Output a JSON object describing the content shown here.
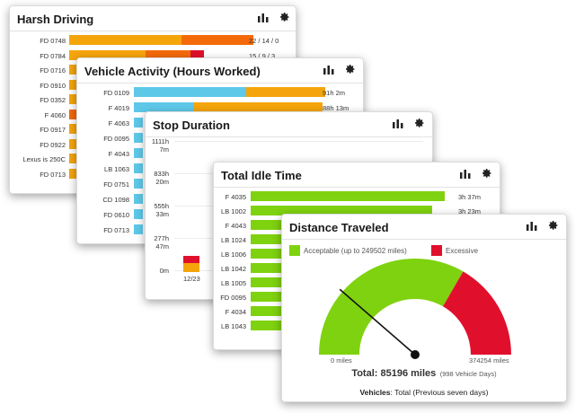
{
  "harsh": {
    "title": "Harsh Driving",
    "rows": [
      {
        "label": "FD 0748",
        "value": "22 / 14 / 0"
      },
      {
        "label": "FD 0784",
        "value": "15 / 9 / 3"
      },
      {
        "label": "FD 0716"
      },
      {
        "label": "FD 0910"
      },
      {
        "label": "FD 0352"
      },
      {
        "label": "F 4060"
      },
      {
        "label": "FD 0917"
      },
      {
        "label": "FD 0922"
      },
      {
        "label": "Lexus is 250C"
      },
      {
        "label": "FD 0713"
      }
    ]
  },
  "activity": {
    "title": "Vehicle Activity (Hours Worked)",
    "rows": [
      {
        "label": "FD 0109",
        "value": "91h 2m"
      },
      {
        "label": "F 4019",
        "value": "88h 13m"
      },
      {
        "label": "F 4063"
      },
      {
        "label": "FD 0095"
      },
      {
        "label": "F 4043"
      },
      {
        "label": "LB 1063"
      },
      {
        "label": "FD 0751"
      },
      {
        "label": "CD 1098"
      },
      {
        "label": "FD 0610"
      },
      {
        "label": "FD 0713"
      }
    ]
  },
  "stop": {
    "title": "Stop Duration",
    "yticks": [
      {
        "l1": "1111h",
        "l2": "7m"
      },
      {
        "l1": "833h",
        "l2": "20m"
      },
      {
        "l1": "555h",
        "l2": "33m"
      },
      {
        "l1": "277h",
        "l2": "47m"
      },
      {
        "l1": "0m",
        "l2": ""
      }
    ],
    "xlabel": "12/23"
  },
  "idle": {
    "title": "Total Idle Time",
    "rows": [
      {
        "label": "F 4035",
        "value": "3h 37m",
        "frac": 0.88
      },
      {
        "label": "LB 1002",
        "value": "3h 23m",
        "frac": 0.82
      },
      {
        "label": "F 4043",
        "frac": 0.3
      },
      {
        "label": "LB 1024",
        "frac": 0.3
      },
      {
        "label": "LB 1006",
        "frac": 0.3
      },
      {
        "label": "LB 1042",
        "frac": 0.3
      },
      {
        "label": "LB 1005",
        "frac": 0.3
      },
      {
        "label": "FD 0095",
        "frac": 0.3
      },
      {
        "label": "F 4034",
        "frac": 0.3
      },
      {
        "label": "LB 1043",
        "frac": 0.3
      }
    ]
  },
  "distance": {
    "title": "Distance Traveled",
    "legend": [
      {
        "label": "Acceptable (up to 249502 miles)",
        "color": "#7fd20f"
      },
      {
        "label": "Excessive",
        "color": "#e0102c"
      }
    ],
    "gauge": {
      "min_label": "0 miles",
      "max_label": "374254 miles",
      "value": 85196,
      "max": 374254,
      "threshold": 249502
    },
    "total_label": "Total: 85196 miles",
    "total_sub": "(998 Vehicle Days)",
    "footer_bold": "Vehicles",
    "footer_rest": ": Total (Previous seven days)"
  },
  "icons": {
    "chart": "bar-chart-icon",
    "settings": "gear-icon"
  }
}
